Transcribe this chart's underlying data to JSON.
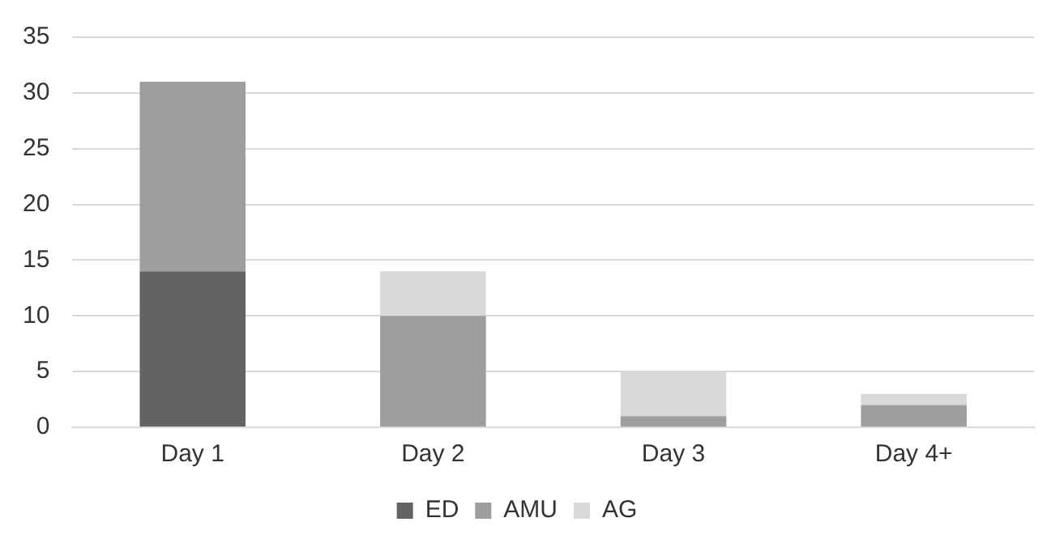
{
  "chart_data": {
    "type": "bar",
    "stacked": true,
    "categories": [
      "Day 1",
      "Day 2",
      "Day 3",
      "Day 4+"
    ],
    "series": [
      {
        "name": "ED",
        "color": "#636363",
        "values": [
          14,
          0,
          0,
          0
        ]
      },
      {
        "name": "AMU",
        "color": "#9e9e9e",
        "values": [
          17,
          10,
          1,
          2
        ]
      },
      {
        "name": "AG",
        "color": "#d9d9d9",
        "values": [
          0,
          4,
          4,
          1
        ]
      }
    ],
    "ylim": [
      0,
      35
    ],
    "yticks": [
      0,
      5,
      10,
      15,
      20,
      25,
      30,
      35
    ],
    "grid": "y",
    "legend": "bottom"
  }
}
